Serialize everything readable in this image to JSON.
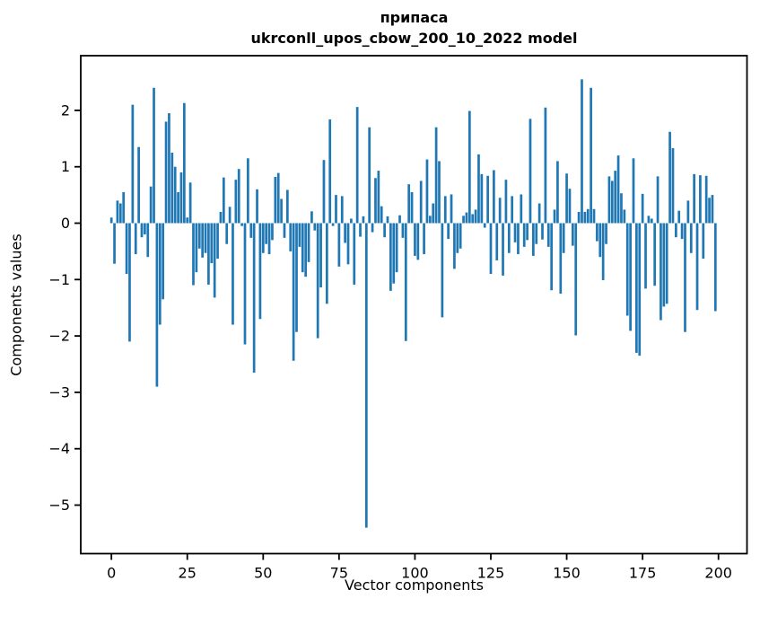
{
  "figure": {
    "title_line1": "припаса",
    "title_line2": "ukrconll_upos_cbow_200_10_2022 model",
    "xlabel": "Vector components",
    "ylabel": "Components values"
  },
  "chart_data": {
    "type": "bar",
    "title": "припаса",
    "subtitle": "ukrconll_upos_cbow_200_10_2022 model",
    "xlabel": "Vector components",
    "ylabel": "Components values",
    "bar_color": "#1f77b4",
    "grid": false,
    "legend": null,
    "x_start": 0,
    "x_ticks": [
      0,
      25,
      50,
      75,
      100,
      125,
      150,
      175,
      200
    ],
    "y_ticks": [
      2,
      1,
      0,
      -1,
      -2,
      -3,
      -4,
      -5
    ],
    "xlim": [
      -10.1,
      209.4
    ],
    "ylim": [
      -5.86,
      2.97
    ],
    "values": [
      0.1,
      -0.72,
      0.4,
      0.35,
      0.55,
      -0.9,
      -2.1,
      2.1,
      -0.55,
      1.35,
      -0.25,
      -0.2,
      -0.6,
      0.65,
      2.4,
      -2.9,
      -1.8,
      -1.35,
      1.8,
      1.95,
      1.25,
      1.0,
      0.55,
      0.9,
      2.13,
      0.1,
      0.72,
      -1.1,
      -0.87,
      -0.45,
      -0.61,
      -0.53,
      -1.09,
      -0.71,
      -1.32,
      -0.63,
      0.2,
      0.81,
      -0.37,
      0.29,
      -1.8,
      0.77,
      0.96,
      -0.05,
      -2.15,
      1.15,
      -0.26,
      -2.65,
      0.6,
      -1.7,
      -0.53,
      -0.37,
      -0.55,
      -0.3,
      0.82,
      0.89,
      0.43,
      -0.26,
      0.59,
      -0.5,
      -2.44,
      -1.93,
      -0.42,
      -0.87,
      -0.95,
      -0.69,
      0.21,
      -0.13,
      -2.04,
      -1.14,
      1.12,
      -1.43,
      1.84,
      -0.05,
      0.5,
      -0.77,
      0.48,
      -0.35,
      -0.73,
      0.08,
      -1.09,
      2.06,
      -0.24,
      0.12,
      -5.4,
      1.7,
      -0.16,
      0.8,
      0.93,
      0.3,
      -0.25,
      0.12,
      -1.2,
      -1.07,
      -0.87,
      0.14,
      -0.26,
      -2.09,
      0.69,
      0.55,
      -0.58,
      -0.65,
      0.75,
      -0.55,
      1.13,
      0.13,
      0.35,
      1.7,
      1.1,
      -1.67,
      0.48,
      -0.28,
      0.51,
      -0.81,
      -0.53,
      -0.45,
      0.13,
      0.19,
      1.99,
      0.16,
      0.24,
      1.22,
      0.87,
      -0.08,
      0.84,
      -0.9,
      0.94,
      -0.66,
      0.45,
      -0.93,
      0.77,
      -0.53,
      0.48,
      -0.34,
      -0.55,
      0.51,
      -0.42,
      -0.3,
      1.85,
      -0.58,
      -0.37,
      0.35,
      -0.29,
      2.05,
      -0.42,
      -1.19,
      0.24,
      1.1,
      -1.25,
      -0.53,
      0.88,
      0.61,
      -0.4,
      -1.99,
      0.2,
      2.55,
      0.2,
      0.25,
      2.4,
      0.25,
      -0.32,
      -0.6,
      -1.01,
      -0.37,
      0.83,
      0.75,
      0.93,
      1.2,
      0.53,
      0.24,
      -1.64,
      -1.91,
      1.15,
      -2.3,
      -2.35,
      0.52,
      -1.16,
      0.13,
      0.08,
      -1.11,
      0.83,
      -1.72,
      -1.48,
      -1.43,
      1.62,
      1.33,
      -0.25,
      0.22,
      -0.28,
      -1.93,
      0.4,
      -0.53,
      0.87,
      -1.54,
      0.85,
      -0.63,
      0.84,
      0.45,
      0.5,
      -1.56
    ]
  }
}
